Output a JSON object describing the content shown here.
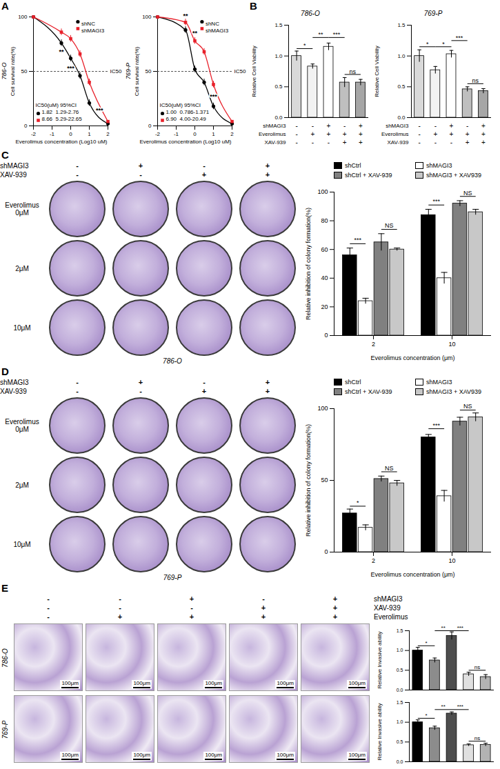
{
  "chart_data": [
    {
      "panel": "A",
      "type": "line",
      "cell_line": "786-O",
      "xlabel": "Everolimus concentration (Log10 uM)",
      "ylabel": "Cell survival rate(%)",
      "x": [
        -2,
        -0.5,
        0,
        0.5,
        1,
        2
      ],
      "series": [
        {
          "name": "shNC",
          "color": "#000000",
          "marker": "circle",
          "values": [
            100,
            76,
            62,
            46,
            21,
            2
          ],
          "errors": [
            2,
            3,
            3,
            3,
            3,
            1
          ]
        },
        {
          "name": "shMAGI3",
          "color": "#e8202a",
          "marker": "square",
          "values": [
            100,
            86,
            80,
            66,
            40,
            4
          ],
          "errors": [
            2,
            3,
            3,
            3,
            3,
            1
          ]
        }
      ],
      "xlim": [
        -2,
        2
      ],
      "ylim": [
        0,
        100
      ],
      "xticks": [
        -2,
        -1,
        0,
        1,
        2
      ],
      "yticks": [
        0,
        50,
        100
      ],
      "legend": "top-right",
      "reference_line": {
        "y": 50,
        "label": "IC50",
        "line_style": "dashed"
      },
      "ic50_table": {
        "header": "IC50(uM) 95%CI",
        "rows": [
          {
            "series": "shNC",
            "ic50": "1.82",
            "ci": "1.29-2.76"
          },
          {
            "series": "shMAGI3",
            "ic50": "8.66",
            "ci": "5.29-22.65"
          }
        ]
      },
      "annotations": [
        {
          "x": -0.5,
          "y": 68,
          "text": "**"
        },
        {
          "x": 0,
          "y": 53,
          "text": "***"
        },
        {
          "x": 1.55,
          "y": 14,
          "text": "***"
        }
      ]
    },
    {
      "panel": "A",
      "type": "line",
      "cell_line": "769-P",
      "xlabel": "Everolimus concentration (Log10 uM)",
      "ylabel": "Cell survival rate(%)",
      "x": [
        -2,
        -0.5,
        0,
        0.5,
        1,
        2
      ],
      "series": [
        {
          "name": "shNC",
          "color": "#000000",
          "marker": "circle",
          "values": [
            100,
            88,
            52,
            40,
            18,
            2
          ],
          "errors": [
            2,
            3,
            3,
            3,
            3,
            1
          ]
        },
        {
          "name": "shMAGI3",
          "color": "#e8202a",
          "marker": "square",
          "values": [
            100,
            95,
            78,
            68,
            38,
            4
          ],
          "errors": [
            2,
            3,
            3,
            3,
            3,
            1
          ]
        }
      ],
      "xlim": [
        -2,
        2
      ],
      "ylim": [
        0,
        100
      ],
      "xticks": [
        -2,
        -1,
        0,
        1,
        2
      ],
      "yticks": [
        0,
        50,
        100
      ],
      "legend": "top-right",
      "reference_line": {
        "y": 50,
        "label": "IC50",
        "line_style": "dashed"
      },
      "ic50_table": {
        "header": "IC50(uM) 95%CI",
        "rows": [
          {
            "series": "shNC",
            "ic50": "1.00",
            "ci": "0.786-1.371"
          },
          {
            "series": "shMAGI3",
            "ic50": "6.90",
            "ci": "4.00-20.49"
          }
        ]
      },
      "annotations": [
        {
          "x": -0.5,
          "y": 101,
          "text": "**"
        },
        {
          "x": 0,
          "y": 85,
          "text": "**"
        },
        {
          "x": 1,
          "y": 27,
          "text": "***"
        }
      ]
    },
    {
      "panel": "B",
      "type": "bar",
      "title": "786-O",
      "ylabel": "Relative Cell Viability",
      "values": [
        1.0,
        0.83,
        1.15,
        0.57,
        0.57
      ],
      "errors": [
        0.08,
        0.04,
        0.06,
        0.08,
        0.05
      ],
      "colors": [
        "#d9d9d9",
        "#f2f2f2",
        "#ffffff",
        "#bfbfbf",
        "#a6a6a6"
      ],
      "ylim": [
        0,
        1.5
      ],
      "yticks": [
        {
          "value": 0,
          "label": "0.0"
        },
        0.5,
        {
          "value": 1,
          "label": "1.0"
        },
        1.5
      ],
      "tick_labels": "y",
      "treatments": [
        {
          "label": "shMAGI3",
          "values": [
            "-",
            "-",
            "+",
            "-",
            "+"
          ]
        },
        {
          "label": "Everolimus",
          "values": [
            "-",
            "+",
            "+",
            "+",
            "+"
          ]
        },
        {
          "label": "XAV-939",
          "values": [
            "-",
            "-",
            "-",
            "+",
            "+"
          ]
        }
      ],
      "brackets": [
        {
          "from": 0,
          "to": 1,
          "y": 1.12,
          "text": "*"
        },
        {
          "from": 1,
          "to": 2,
          "y": 1.3,
          "text": "**"
        },
        {
          "from": 2,
          "to": 3,
          "y": 1.3,
          "text": "***"
        },
        {
          "from": 3,
          "to": 4,
          "y": 0.7,
          "text": "ns"
        }
      ]
    },
    {
      "panel": "B",
      "type": "bar",
      "title": "769-P",
      "ylabel": "Relative Cell Viability",
      "values": [
        1.0,
        0.77,
        1.03,
        0.46,
        0.43
      ],
      "errors": [
        0.1,
        0.06,
        0.06,
        0.04,
        0.04
      ],
      "colors": [
        "#d9d9d9",
        "#f2f2f2",
        "#ffffff",
        "#bfbfbf",
        "#a6a6a6"
      ],
      "ylim": [
        0,
        1.5
      ],
      "yticks": [
        {
          "value": 0,
          "label": "0.0"
        },
        0.5,
        {
          "value": 1,
          "label": "1.0"
        },
        1.5
      ],
      "tick_labels": "y",
      "treatments": [
        {
          "label": "shMAGI3",
          "values": [
            "-",
            "-",
            "+",
            "-",
            "+"
          ]
        },
        {
          "label": "Everolimus",
          "values": [
            "-",
            "+",
            "+",
            "+",
            "+"
          ]
        },
        {
          "label": "XAV-939",
          "values": [
            "-",
            "-",
            "-",
            "+",
            "+"
          ]
        }
      ],
      "brackets": [
        {
          "from": 0,
          "to": 1,
          "y": 1.15,
          "text": "*"
        },
        {
          "from": 1,
          "to": 2,
          "y": 1.15,
          "text": "*"
        },
        {
          "from": 2,
          "to": 3,
          "y": 1.25,
          "text": "***"
        },
        {
          "from": 3,
          "to": 4,
          "y": 0.55,
          "text": "ns"
        }
      ]
    },
    {
      "panel": "C",
      "type": "bar",
      "ylabel": "Relative inhibition of colony formation(%)",
      "xlabel": "Everolimus concentration (μm)",
      "categories": [
        "2",
        "10"
      ],
      "series": [
        {
          "name": "shCtrl",
          "color": "#000000",
          "values": [
            56,
            84
          ],
          "errors": [
            5,
            4
          ]
        },
        {
          "name": "shMAGI3",
          "color": "#ffffff",
          "values": [
            24,
            40
          ],
          "errors": [
            2,
            4
          ]
        },
        {
          "name": "shCtrl + XAV-939",
          "color": "#808080",
          "values": [
            65,
            92
          ],
          "errors": [
            6,
            2
          ]
        },
        {
          "name": "shMAGI3 + XAV939",
          "color": "#c8c8c8",
          "values": [
            60,
            86
          ],
          "errors": [
            1,
            2
          ]
        }
      ],
      "ylim": [
        0,
        100
      ],
      "yticks": [
        0,
        20,
        40,
        60,
        80,
        100
      ],
      "legend": "top",
      "brackets": [
        {
          "category": "2",
          "from": "shCtrl",
          "to": "shMAGI3",
          "y": 64,
          "text": "***"
        },
        {
          "category": "2",
          "from": "shCtrl + XAV-939",
          "to": "shMAGI3 + XAV939",
          "y": 74,
          "text": "NS"
        },
        {
          "category": "10",
          "from": "shCtrl",
          "to": "shMAGI3",
          "y": 91,
          "text": "***"
        },
        {
          "category": "10",
          "from": "shCtrl + XAV-939",
          "to": "shMAGI3 + XAV939",
          "y": 97,
          "text": "NS"
        }
      ],
      "image_grid": {
        "caption": "786-O",
        "column_headers": [
          {
            "label": "shMAGI3",
            "values": [
              "-",
              "+",
              "-",
              "+"
            ]
          },
          {
            "label": "XAV-939",
            "values": [
              "-",
              "-",
              "+",
              "+"
            ]
          }
        ],
        "row_title": "Everolimus",
        "row_labels": [
          "0μM",
          "2μM",
          "10μM"
        ]
      }
    },
    {
      "panel": "D",
      "type": "bar",
      "ylabel": "Relative inhibition of colony formation(%)",
      "xlabel": "Everolimus concentration (μm)",
      "categories": [
        "2",
        "10"
      ],
      "series": [
        {
          "name": "shCtrl",
          "color": "#000000",
          "values": [
            27,
            80
          ],
          "errors": [
            3,
            2
          ]
        },
        {
          "name": "shMAGI3",
          "color": "#ffffff",
          "values": [
            17,
            39
          ],
          "errors": [
            2,
            4
          ]
        },
        {
          "name": "shCtrl + XAV-939",
          "color": "#808080",
          "values": [
            51,
            91
          ],
          "errors": [
            2,
            3
          ]
        },
        {
          "name": "shMAGI3 + XAV939",
          "color": "#c8c8c8",
          "values": [
            48,
            94
          ],
          "errors": [
            2,
            3
          ]
        }
      ],
      "ylim": [
        0,
        100
      ],
      "yticks": [
        0,
        50,
        100
      ],
      "legend": "top",
      "brackets": [
        {
          "category": "2",
          "from": "shCtrl",
          "to": "shMAGI3",
          "y": 32,
          "text": "*"
        },
        {
          "category": "2",
          "from": "shCtrl + XAV-939",
          "to": "shMAGI3 + XAV939",
          "y": 56,
          "text": "NS"
        },
        {
          "category": "10",
          "from": "shCtrl",
          "to": "shMAGI3",
          "y": 86,
          "text": "***"
        },
        {
          "category": "10",
          "from": "shCtrl + XAV-939",
          "to": "shMAGI3 + XAV939",
          "y": 99,
          "text": "NS"
        }
      ],
      "image_grid": {
        "caption": "769-P",
        "column_headers": [
          {
            "label": "shMAGI3",
            "values": [
              "-",
              "+",
              "-",
              "+"
            ]
          },
          {
            "label": "XAV-939",
            "values": [
              "-",
              "-",
              "+",
              "+"
            ]
          }
        ],
        "row_title": "Everolimus",
        "row_labels": [
          "0μM",
          "2μM",
          "10μM"
        ]
      }
    },
    {
      "panel": "E",
      "type": "bar",
      "ylabel": "Relative Invasive ability",
      "ylim": [
        0,
        1.5
      ],
      "yticks": [
        {
          "value": 0,
          "label": "0.0"
        },
        0.5,
        {
          "value": 1,
          "label": "1.0"
        },
        1.5
      ],
      "tick_labels": "y",
      "colors": [
        "#000000",
        "#8c8c8c",
        "#4d4d4d",
        "#e0e0e0",
        "#b3b3b3"
      ],
      "image_grid": {
        "column_headers": [
          {
            "label": "shMAGI3",
            "values": [
              "-",
              "-",
              "+",
              "-",
              "+"
            ]
          },
          {
            "label": "XAV-939",
            "values": [
              "-",
              "-",
              "-",
              "+",
              "+"
            ]
          },
          {
            "label": "Everolimus",
            "values": [
              "-",
              "+",
              "+",
              "+",
              "+"
            ]
          }
        ],
        "scale_bar": "100μm"
      },
      "rows": [
        {
          "cell_line": "786-O",
          "values": [
            1.0,
            0.75,
            1.37,
            0.4,
            0.33
          ],
          "errors": [
            0.08,
            0.06,
            0.1,
            0.05,
            0.06
          ],
          "brackets": [
            {
              "from": 0,
              "to": 1,
              "y": 1.12,
              "text": "*"
            },
            {
              "from": 1,
              "to": 2,
              "y": 1.5,
              "text": "**"
            },
            {
              "from": 2,
              "to": 3,
              "y": 1.5,
              "text": "***"
            },
            {
              "from": 3,
              "to": 4,
              "y": 0.5,
              "text": "ns"
            }
          ]
        },
        {
          "cell_line": "769-P",
          "values": [
            1.0,
            0.85,
            1.22,
            0.42,
            0.43
          ],
          "errors": [
            0.06,
            0.05,
            0.04,
            0.03,
            0.04
          ],
          "brackets": [
            {
              "from": 0,
              "to": 1,
              "y": 1.1,
              "text": "*"
            },
            {
              "from": 1,
              "to": 2,
              "y": 1.32,
              "text": "**"
            },
            {
              "from": 2,
              "to": 3,
              "y": 1.32,
              "text": "***"
            },
            {
              "from": 3,
              "to": 4,
              "y": 0.52,
              "text": "ns"
            }
          ]
        }
      ]
    }
  ]
}
